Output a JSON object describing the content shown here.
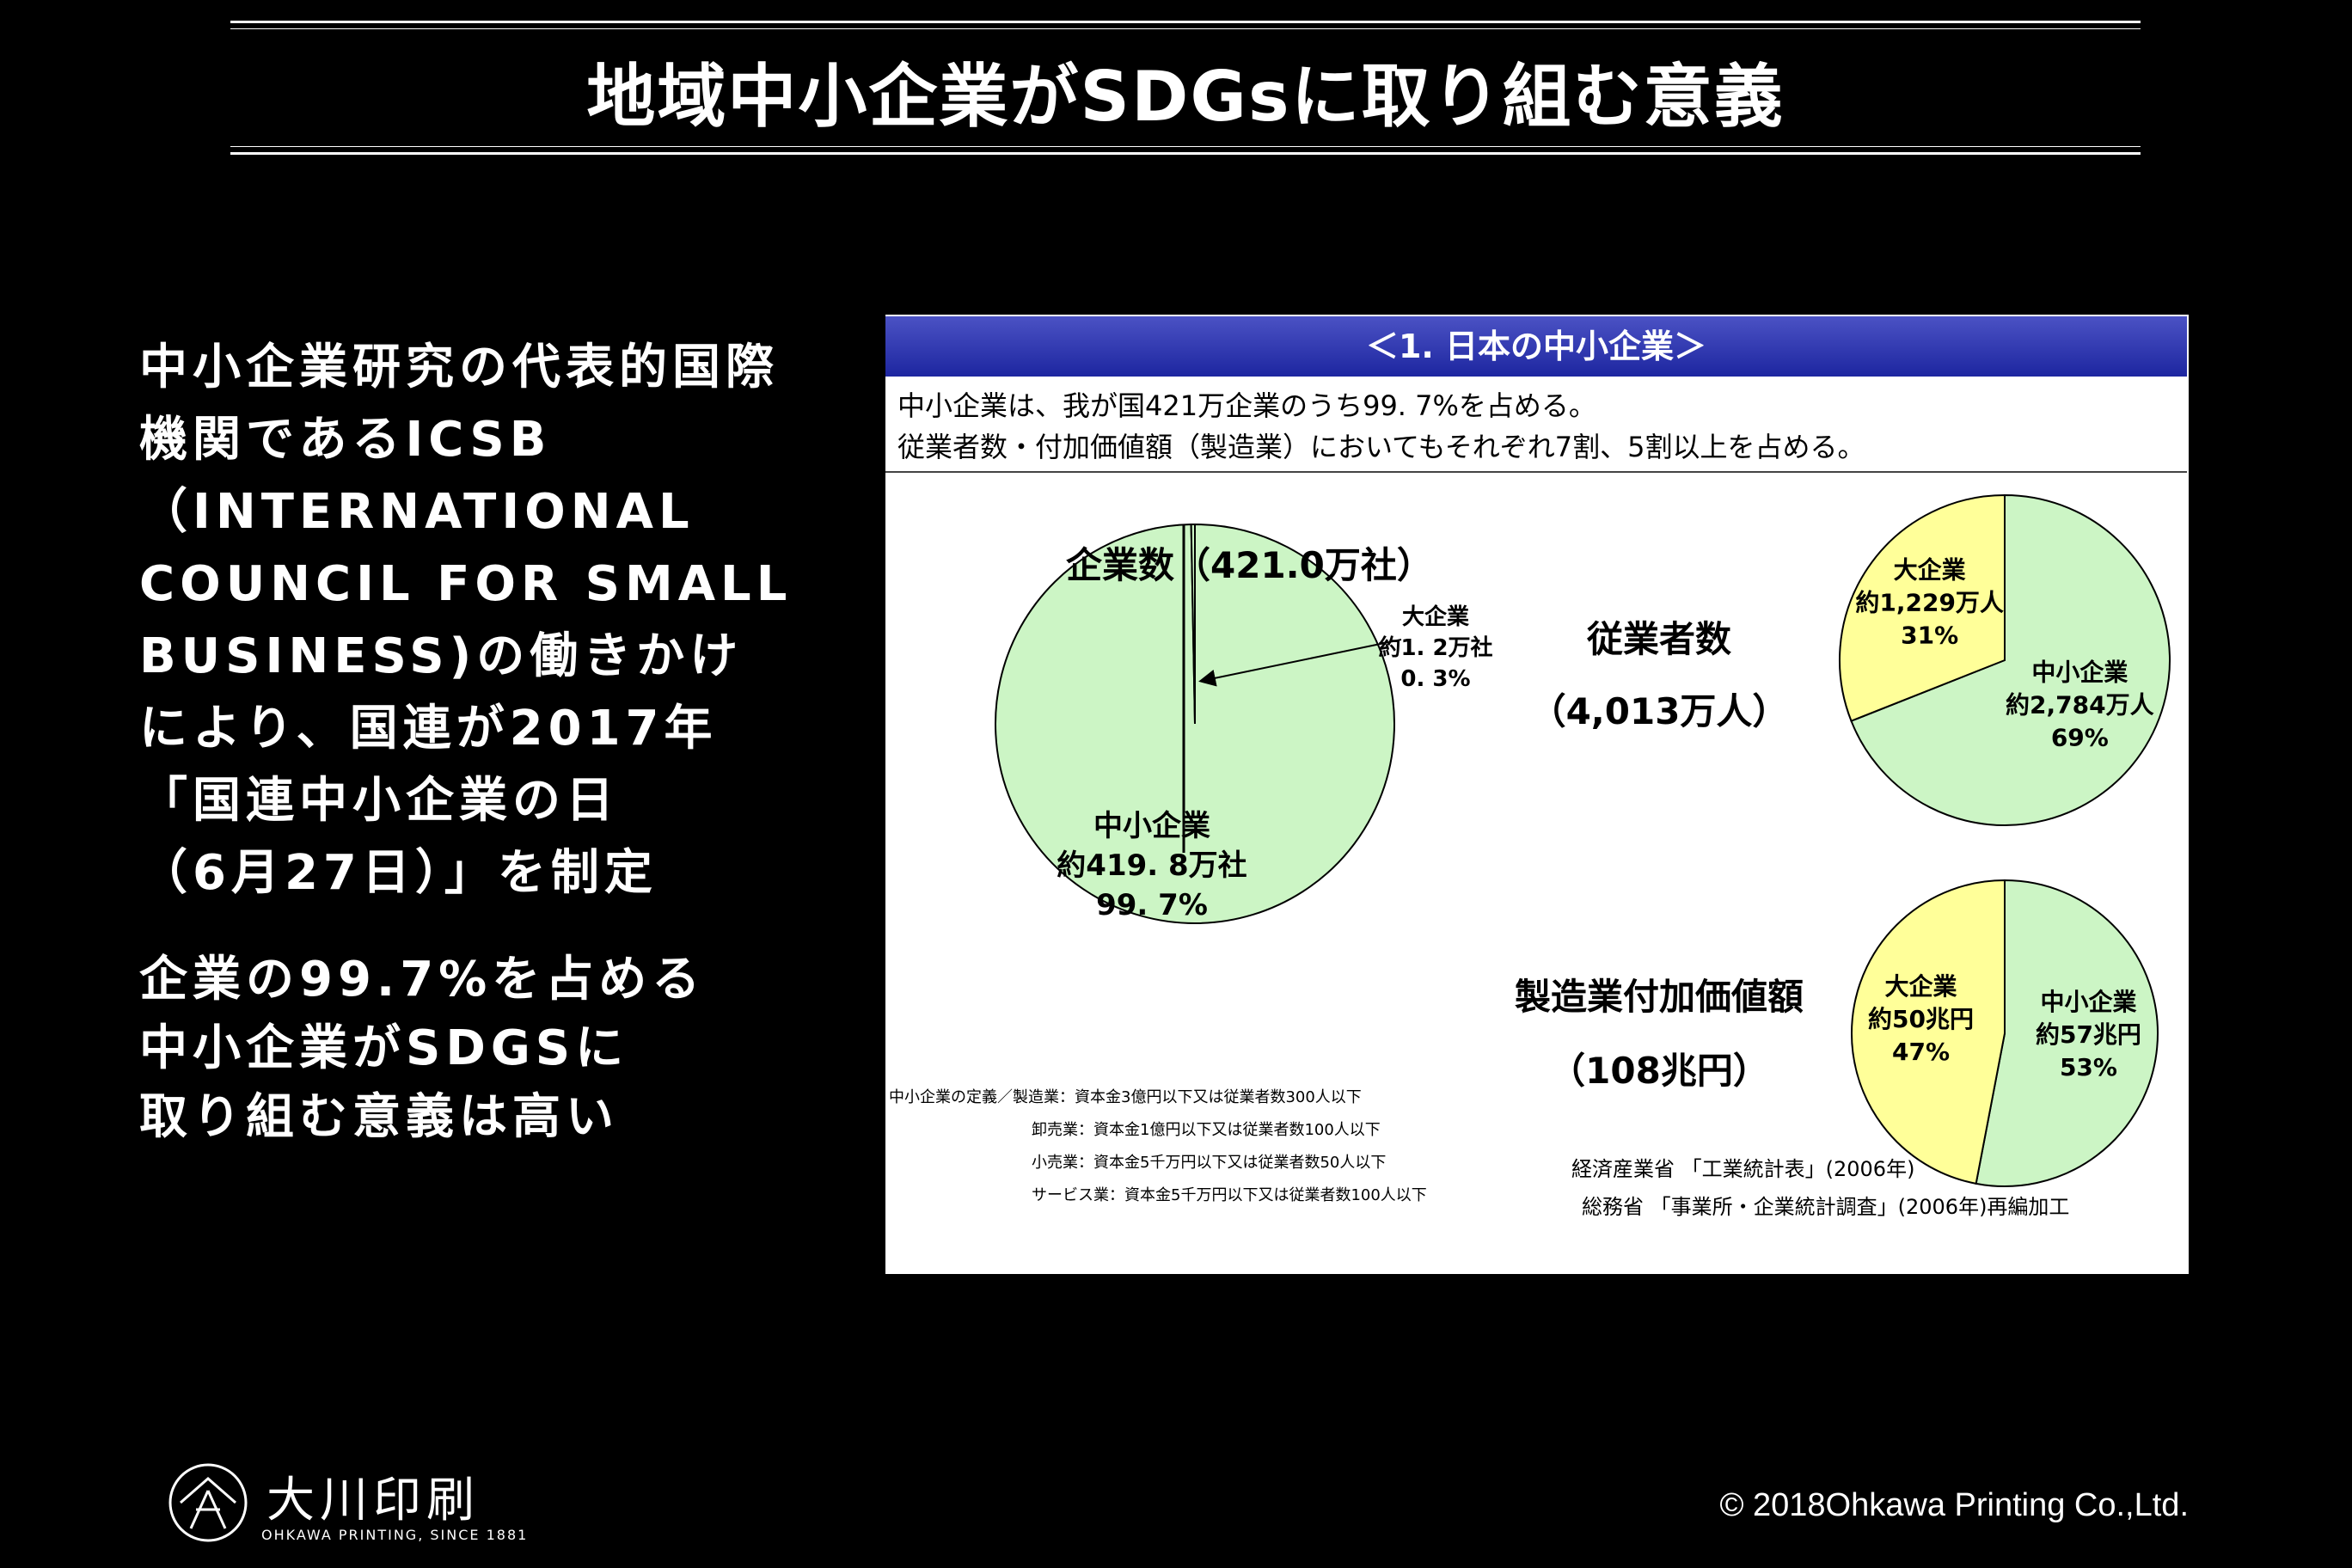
{
  "slide": {
    "title": "地域中小企業がSDGsに取り組む意義",
    "left_lines": [
      "中小企業研究の代表的国際",
      "機関であるICSB",
      "（INTERNATIONAL",
      "COUNCIL FOR SMALL",
      "BUSINESS)の働きかけ",
      "により、国連が2017年",
      "「国連中小企業の日",
      "（6月27日）」を制定"
    ],
    "left_lines2": [
      "企業の99.7%を占める",
      "中小企業がSDGSに",
      "取り組む意義は高い"
    ],
    "copyright": "© 2018Ohkawa Printing Co.,Ltd.",
    "logo_name": "大川印刷",
    "logo_sub": "OHKAWA PRINTING, SINCE 1881"
  },
  "panel": {
    "header": "＜1. 日本の中小企業＞",
    "summary_1": "中小企業は、我が国421万企業のうち99. 7%を占める。",
    "summary_2": "従業者数・付加価値額（製造業）においてもそれぞれ7割、5割以上を占める。",
    "definitions": [
      "中小企業の定義／製造業：資本金3億円以下又は従業者数300人以下",
      "卸売業：資本金1億円以下又は従業者数100人以下",
      "小売業：資本金5千万円以下又は従業者数50人以下",
      "サービス業：資本金5千万円以下又は従業者数100人以下"
    ],
    "source_1": "経済産業省 「工業統計表」(2006年)",
    "source_2": "総務省 「事業所・企業統計調査」(2006年)再編加工"
  },
  "chart_data": [
    {
      "type": "pie",
      "title": "企業数（421.0万社）",
      "slices": [
        {
          "name": "中小企業",
          "value": 99.7,
          "label": [
            "中小企業",
            "約419. 8万社",
            "99. 7%"
          ],
          "color": "#ccf5c5"
        },
        {
          "name": "大企業",
          "value": 0.3,
          "label": [
            "大企業",
            "約1. 2万社",
            "0. 3%"
          ],
          "color": "#ccf5c5"
        }
      ]
    },
    {
      "type": "pie",
      "title": "従業者数",
      "subtitle": "（4,013万人）",
      "slices": [
        {
          "name": "中小企業",
          "value": 69,
          "label": [
            "中小企業",
            "約2,784万人",
            "69%"
          ],
          "color": "#ccf5c5"
        },
        {
          "name": "大企業",
          "value": 31,
          "label": [
            "大企業",
            "約1,229万人",
            "31%"
          ],
          "color": "#ffff99"
        }
      ]
    },
    {
      "type": "pie",
      "title": "製造業付加価値額",
      "subtitle": "（108兆円）",
      "slices": [
        {
          "name": "中小企業",
          "value": 53,
          "label": [
            "中小企業",
            "約57兆円",
            "53%"
          ],
          "color": "#ccf5c5"
        },
        {
          "name": "大企業",
          "value": 47,
          "label": [
            "大企業",
            "約50兆円",
            "47%"
          ],
          "color": "#ffff99"
        }
      ]
    }
  ]
}
